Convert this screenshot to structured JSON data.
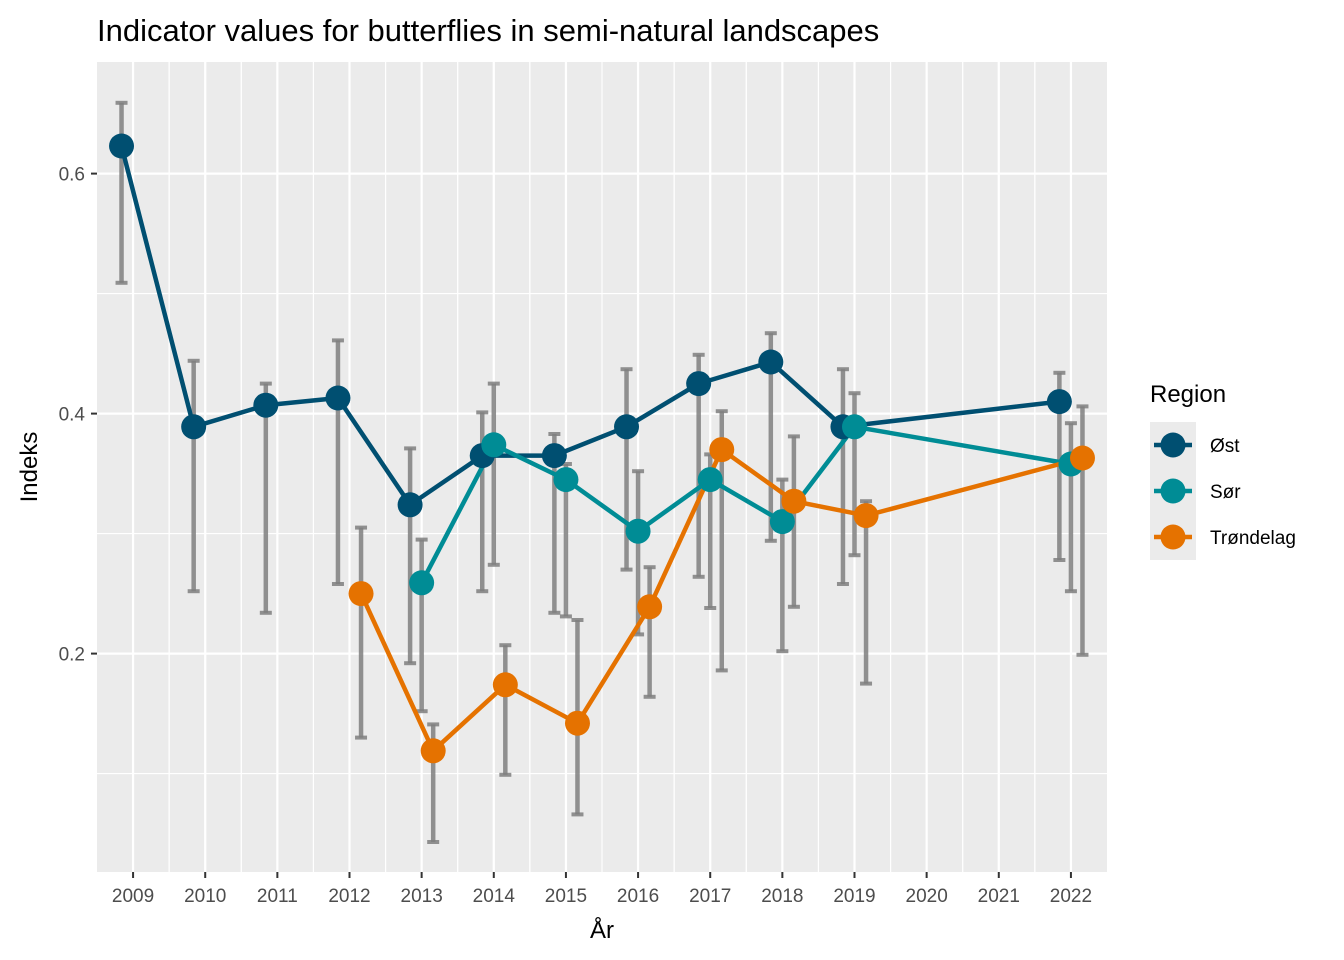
{
  "chart_data": {
    "type": "line",
    "title": "Indicator values for butterflies in semi-natural landscapes",
    "xlabel": "År",
    "ylabel": "Indeks",
    "x_ticks": [
      "2009",
      "2010",
      "2011",
      "2012",
      "2013",
      "2014",
      "2015",
      "2016",
      "2017",
      "2018",
      "2019",
      "2020",
      "2021",
      "2022"
    ],
    "y_ticks": [
      "0.2",
      "0.4",
      "0.6"
    ],
    "xlim": [
      2008.5,
      2022.5
    ],
    "ylim": [
      0.018,
      0.693
    ],
    "grid": true,
    "error_bars": true,
    "legend": {
      "title": "Region",
      "position": "right"
    },
    "series": [
      {
        "name": "Øst",
        "color": "#004f71",
        "points": [
          {
            "x": 2009,
            "y": 0.623,
            "lo": 0.509,
            "hi": 0.659
          },
          {
            "x": 2010,
            "y": 0.389,
            "lo": 0.252,
            "hi": 0.444
          },
          {
            "x": 2011,
            "y": 0.407,
            "lo": 0.234,
            "hi": 0.425
          },
          {
            "x": 2012,
            "y": 0.413,
            "lo": 0.258,
            "hi": 0.461
          },
          {
            "x": 2013,
            "y": 0.324,
            "lo": 0.192,
            "hi": 0.371
          },
          {
            "x": 2014,
            "y": 0.365,
            "lo": 0.252,
            "hi": 0.401
          },
          {
            "x": 2015,
            "y": 0.365,
            "lo": 0.234,
            "hi": 0.383
          },
          {
            "x": 2016,
            "y": 0.389,
            "lo": 0.27,
            "hi": 0.437
          },
          {
            "x": 2017,
            "y": 0.425,
            "lo": 0.264,
            "hi": 0.449
          },
          {
            "x": 2018,
            "y": 0.443,
            "lo": 0.294,
            "hi": 0.467
          },
          {
            "x": 2019,
            "y": 0.389,
            "lo": 0.258,
            "hi": 0.437
          },
          {
            "x": 2022,
            "y": 0.41,
            "lo": 0.278,
            "hi": 0.434
          }
        ]
      },
      {
        "name": "Sør",
        "color": "#008c95",
        "points": [
          {
            "x": 2013,
            "y": 0.259,
            "lo": 0.152,
            "hi": 0.295
          },
          {
            "x": 2014,
            "y": 0.374,
            "lo": 0.274,
            "hi": 0.425
          },
          {
            "x": 2015,
            "y": 0.345,
            "lo": 0.231,
            "hi": 0.358
          },
          {
            "x": 2016,
            "y": 0.302,
            "lo": 0.216,
            "hi": 0.352
          },
          {
            "x": 2017,
            "y": 0.345,
            "lo": 0.238,
            "hi": 0.366
          },
          {
            "x": 2018,
            "y": 0.31,
            "lo": 0.202,
            "hi": 0.345
          },
          {
            "x": 2019,
            "y": 0.389,
            "lo": 0.282,
            "hi": 0.417
          },
          {
            "x": 2022,
            "y": 0.358,
            "lo": 0.252,
            "hi": 0.392
          }
        ]
      },
      {
        "name": "Trøndelag",
        "color": "#e57200",
        "points": [
          {
            "x": 2012,
            "y": 0.25,
            "lo": 0.13,
            "hi": 0.305
          },
          {
            "x": 2013,
            "y": 0.119,
            "lo": 0.043,
            "hi": 0.141
          },
          {
            "x": 2014,
            "y": 0.174,
            "lo": 0.099,
            "hi": 0.207
          },
          {
            "x": 2015,
            "y": 0.142,
            "lo": 0.066,
            "hi": 0.228
          },
          {
            "x": 2016,
            "y": 0.239,
            "lo": 0.164,
            "hi": 0.272
          },
          {
            "x": 2017,
            "y": 0.37,
            "lo": 0.186,
            "hi": 0.402
          },
          {
            "x": 2018,
            "y": 0.327,
            "lo": 0.239,
            "hi": 0.381
          },
          {
            "x": 2019,
            "y": 0.315,
            "lo": 0.175,
            "hi": 0.327
          },
          {
            "x": 2022,
            "y": 0.363,
            "lo": 0.199,
            "hi": 0.406
          }
        ]
      }
    ]
  }
}
